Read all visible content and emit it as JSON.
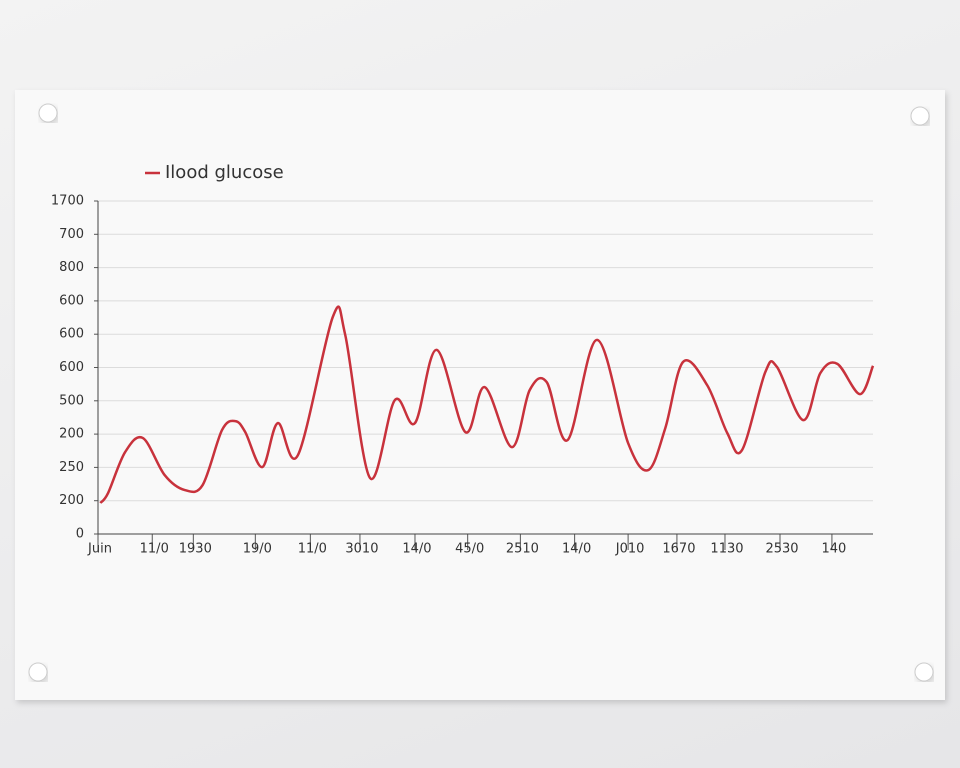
{
  "chart_data": {
    "type": "line",
    "series": [
      {
        "name": "Ilood glucose",
        "color": "#c8323c",
        "x": [
          0.3,
          1.3,
          3.5,
          5.8,
          8.6,
          11.2,
          13.5,
          16.0,
          17.7,
          19.0,
          21.2,
          23.2,
          25.8,
          30.3,
          31.9,
          35.1,
          38.3,
          40.9,
          43.7,
          47.4,
          49.9,
          53.4,
          55.7,
          57.9,
          60.6,
          64.4,
          68.4,
          71.0,
          73.2,
          75.5,
          78.6,
          81.2,
          83.1,
          86.1,
          87.6,
          91.0,
          93.2,
          95.4,
          98.3,
          100
        ],
        "values": [
          0.93,
          1.23,
          2.46,
          2.88,
          1.77,
          1.32,
          1.47,
          3.12,
          3.39,
          3.06,
          2.01,
          3.33,
          2.37,
          6.52,
          5.98,
          1.68,
          4.02,
          3.33,
          5.53,
          3.06,
          4.41,
          2.61,
          4.32,
          4.56,
          2.82,
          5.83,
          2.73,
          1.92,
          3.18,
          5.17,
          4.47,
          3.03,
          2.52,
          4.86,
          5.02,
          3.42,
          4.83,
          5.11,
          4.2,
          5.05
        ]
      }
    ],
    "xlim": [
      0,
      100
    ],
    "xticks": [
      {
        "value": 0,
        "label": "Juin"
      },
      {
        "value": 7.0,
        "label": "11/0"
      },
      {
        "value": 12.3,
        "label": "1930"
      },
      {
        "value": 20.3,
        "label": "19/0"
      },
      {
        "value": 27.4,
        "label": "11/0"
      },
      {
        "value": 33.8,
        "label": "3010"
      },
      {
        "value": 40.9,
        "label": "14/0"
      },
      {
        "value": 47.7,
        "label": "45/0"
      },
      {
        "value": 54.5,
        "label": "2510"
      },
      {
        "value": 61.5,
        "label": "14/0"
      },
      {
        "value": 68.4,
        "label": "J010"
      },
      {
        "value": 74.7,
        "label": "1670"
      },
      {
        "value": 80.9,
        "label": "1130"
      },
      {
        "value": 88.0,
        "label": "2530"
      },
      {
        "value": 94.7,
        "label": "140"
      }
    ],
    "ylim": [
      0,
      10
    ],
    "yticks": [
      0,
      {
        "value": 1,
        "label": "200"
      },
      {
        "value": 2,
        "label": "250"
      },
      {
        "value": 3,
        "label": "200"
      },
      {
        "value": 4,
        "label": "500"
      },
      {
        "value": 5,
        "label": "600"
      },
      {
        "value": 6,
        "label": "600"
      },
      {
        "value": 7,
        "label": "600"
      },
      {
        "value": 8,
        "label": "800"
      },
      {
        "value": 9,
        "label": "700"
      },
      {
        "value": 10,
        "label": "1700"
      }
    ],
    "grid": true
  }
}
